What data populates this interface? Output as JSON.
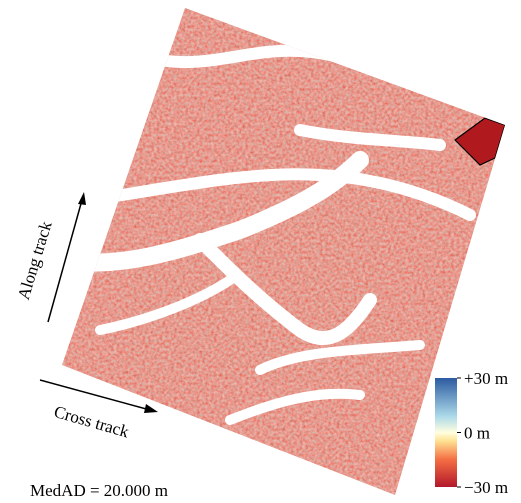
{
  "labels": {
    "along_track": "Along track",
    "cross_track": "Cross track",
    "statistic": "MedAD = 20.000 m"
  },
  "colorbar": {
    "lim": [
      -30,
      30
    ],
    "ticks": [
      {
        "value": 30,
        "label": "+30 m"
      },
      {
        "value": 0,
        "label": "0 m"
      },
      {
        "value": -30,
        "label": "−30 m"
      }
    ]
  }
}
